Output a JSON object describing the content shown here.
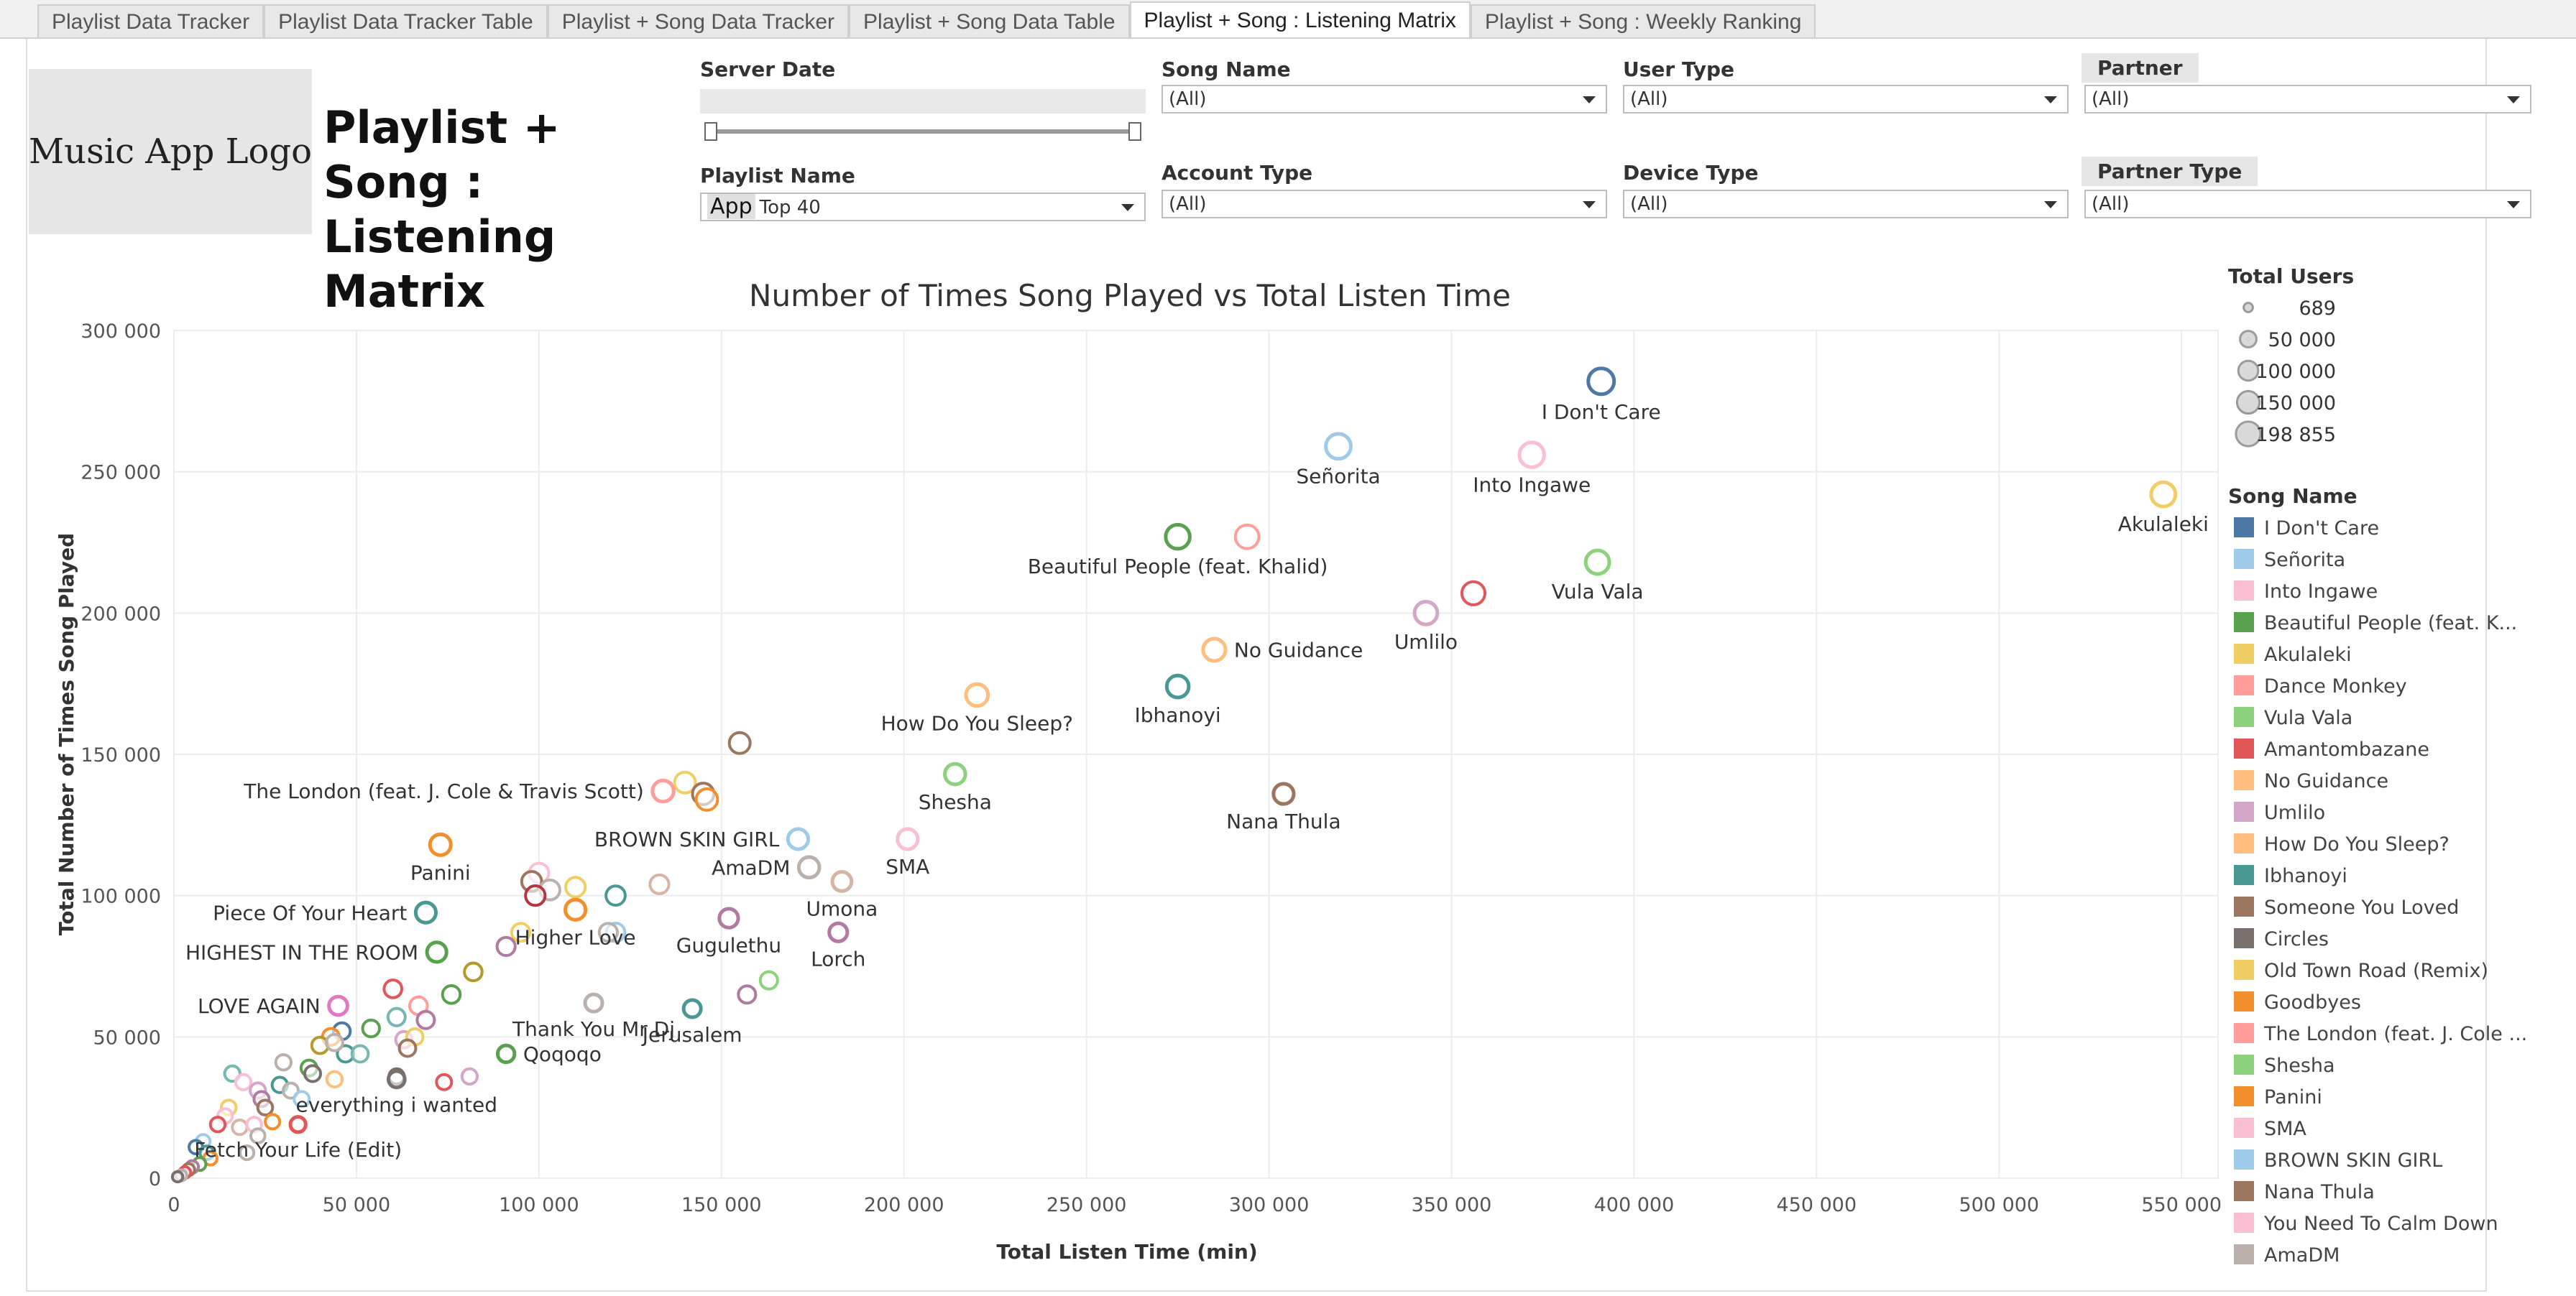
{
  "tabs": [
    {
      "label": "Playlist Data Tracker",
      "active": false
    },
    {
      "label": "Playlist Data Tracker Table",
      "active": false
    },
    {
      "label": "Playlist + Song Data Tracker",
      "active": false
    },
    {
      "label": "Playlist + Song Data Table",
      "active": false
    },
    {
      "label": "Playlist + Song : Listening Matrix",
      "active": true
    },
    {
      "label": "Playlist + Song : Weekly Ranking",
      "active": false
    }
  ],
  "logo_text": "Music App Logo",
  "page_title": "Playlist + Song : Listening Matrix",
  "filters": {
    "server_date": {
      "label": "Server Date"
    },
    "playlist_name": {
      "label": "Playlist Name",
      "tag": "App",
      "value": "Top 40"
    },
    "song_name": {
      "label": "Song Name",
      "value": "(All)"
    },
    "account_type": {
      "label": "Account Type",
      "value": "(All)"
    },
    "user_type": {
      "label": "User Type",
      "value": "(All)"
    },
    "device_type": {
      "label": "Device Type",
      "value": "(All)"
    },
    "partner": {
      "label": "Partner",
      "value": "(All)"
    },
    "partner_type": {
      "label": "Partner Type",
      "value": "(All)"
    }
  },
  "size_legend": {
    "title": "Total Users",
    "entries": [
      {
        "label": "689",
        "value": 689
      },
      {
        "label": "50 000",
        "value": 50000
      },
      {
        "label": "100 000",
        "value": 100000
      },
      {
        "label": "150 000",
        "value": 150000
      },
      {
        "label": "198 855",
        "value": 198855
      }
    ]
  },
  "color_legend": {
    "title": "Song Name",
    "entries": [
      {
        "name": "I Don't Care",
        "color": "#4e79a7"
      },
      {
        "name": "Señorita",
        "color": "#a0cbe8"
      },
      {
        "name": "Into Ingawe",
        "color": "#fabfd2"
      },
      {
        "name": "Beautiful People (feat. K...",
        "color": "#59a14f"
      },
      {
        "name": "Akulaleki",
        "color": "#f1ce63"
      },
      {
        "name": "Dance Monkey",
        "color": "#ff9d9a"
      },
      {
        "name": "Vula Vala",
        "color": "#8cd17d"
      },
      {
        "name": "Amantombazane",
        "color": "#e15759"
      },
      {
        "name": "No Guidance",
        "color": "#ffbe7d"
      },
      {
        "name": "Umlilo",
        "color": "#d4a6c8"
      },
      {
        "name": "How Do You Sleep?",
        "color": "#ffbe7d"
      },
      {
        "name": "Ibhanoyi",
        "color": "#499894"
      },
      {
        "name": "Someone You Loved",
        "color": "#9d7660"
      },
      {
        "name": "Circles",
        "color": "#79706e"
      },
      {
        "name": "Old Town Road (Remix)",
        "color": "#f1ce63"
      },
      {
        "name": "Goodbyes",
        "color": "#f28e2b"
      },
      {
        "name": "The London (feat. J. Cole ...",
        "color": "#ff9d9a"
      },
      {
        "name": "Shesha",
        "color": "#8cd17d"
      },
      {
        "name": "Panini",
        "color": "#f28e2b"
      },
      {
        "name": "SMA",
        "color": "#fabfd2"
      },
      {
        "name": "BROWN SKIN GIRL",
        "color": "#a0cbe8"
      },
      {
        "name": "Nana Thula",
        "color": "#9d7660"
      },
      {
        "name": "You Need To Calm Down",
        "color": "#fabfd2"
      },
      {
        "name": "AmaDM",
        "color": "#bab0ac"
      }
    ]
  },
  "chart_data": {
    "type": "scatter",
    "title": "Number of Times Song Played vs Total Listen Time",
    "xlabel": "Total Listen Time (min)",
    "ylabel": "Total Number of Times Song Played",
    "xlim": [
      0,
      560000
    ],
    "ylim": [
      0,
      300000
    ],
    "xticks": [
      {
        "value": 0,
        "label": "0"
      },
      {
        "value": 50000,
        "label": "50 000"
      },
      {
        "value": 100000,
        "label": "100 000"
      },
      {
        "value": 150000,
        "label": "150 000"
      },
      {
        "value": 200000,
        "label": "200 000"
      },
      {
        "value": 250000,
        "label": "250 000"
      },
      {
        "value": 300000,
        "label": "300 000"
      },
      {
        "value": 350000,
        "label": "350 000"
      },
      {
        "value": 400000,
        "label": "400 000"
      },
      {
        "value": 450000,
        "label": "450 000"
      },
      {
        "value": 500000,
        "label": "500 000"
      },
      {
        "value": 550000,
        "label": "550 000"
      }
    ],
    "yticks": [
      {
        "value": 0,
        "label": "0"
      },
      {
        "value": 50000,
        "label": "50 000"
      },
      {
        "value": 100000,
        "label": "100 000"
      },
      {
        "value": 150000,
        "label": "150 000"
      },
      {
        "value": 200000,
        "label": "200 000"
      },
      {
        "value": 250000,
        "label": "250 000"
      },
      {
        "value": 300000,
        "label": "300 000"
      }
    ],
    "grid": true,
    "labeled_points": [
      {
        "label": "I Don't Care",
        "x": 391000,
        "y": 282000,
        "users": 198855,
        "color": "#4e79a7",
        "label_pos": "below"
      },
      {
        "label": "Señorita",
        "x": 319000,
        "y": 259000,
        "users": 180000,
        "color": "#a0cbe8",
        "label_pos": "below"
      },
      {
        "label": "Into Ingawe",
        "x": 372000,
        "y": 256000,
        "users": 175000,
        "color": "#fabfd2",
        "label_pos": "below"
      },
      {
        "label": "Akulaleki",
        "x": 545000,
        "y": 242000,
        "users": 165000,
        "color": "#f1ce63",
        "label_pos": "below"
      },
      {
        "label": "Beautiful People (feat. Khalid)",
        "x": 275000,
        "y": 227000,
        "users": 160000,
        "color": "#59a14f",
        "label_pos": "below"
      },
      {
        "label": "Vula Vala",
        "x": 390000,
        "y": 218000,
        "users": 150000,
        "color": "#8cd17d",
        "label_pos": "below"
      },
      {
        "label": "Umlilo",
        "x": 343000,
        "y": 200000,
        "users": 135000,
        "color": "#d4a6c8",
        "label_pos": "below"
      },
      {
        "label": "No Guidance",
        "x": 285000,
        "y": 187000,
        "users": 125000,
        "color": "#ffbe7d",
        "label_pos": "right"
      },
      {
        "label": "Ibhanoyi",
        "x": 275000,
        "y": 174000,
        "users": 120000,
        "color": "#499894",
        "label_pos": "below"
      },
      {
        "label": "How Do You Sleep?",
        "x": 220000,
        "y": 171000,
        "users": 120000,
        "color": "#ffbe7d",
        "label_pos": "below"
      },
      {
        "label": "Shesha",
        "x": 214000,
        "y": 143000,
        "users": 95000,
        "color": "#8cd17d",
        "label_pos": "below"
      },
      {
        "label": "Nana Thula",
        "x": 304000,
        "y": 136000,
        "users": 90000,
        "color": "#9d7660",
        "label_pos": "below"
      },
      {
        "label": "The London (feat. J. Cole & Travis Scott)",
        "x": 134000,
        "y": 137000,
        "users": 105000,
        "color": "#ff9d9a",
        "label_pos": "left"
      },
      {
        "label": "BROWN SKIN GIRL",
        "x": 171000,
        "y": 120000,
        "users": 90000,
        "color": "#a0cbe8",
        "label_pos": "left"
      },
      {
        "label": "SMA",
        "x": 201000,
        "y": 120000,
        "users": 90000,
        "color": "#fabfd2",
        "label_pos": "below"
      },
      {
        "label": "Panini",
        "x": 73000,
        "y": 118000,
        "users": 100000,
        "color": "#f28e2b",
        "label_pos": "below"
      },
      {
        "label": "AmaDM",
        "x": 174000,
        "y": 110000,
        "users": 95000,
        "color": "#bab0ac",
        "label_pos": "left"
      },
      {
        "label": "Umona",
        "x": 183000,
        "y": 105000,
        "users": 75000,
        "color": "#d7b5a6",
        "label_pos": "below"
      },
      {
        "label": "Piece Of Your Heart",
        "x": 69000,
        "y": 94000,
        "users": 90000,
        "color": "#499894",
        "label_pos": "left"
      },
      {
        "label": "Gugulethu",
        "x": 152000,
        "y": 92000,
        "users": 70000,
        "color": "#b07aa1",
        "label_pos": "below"
      },
      {
        "label": "Lorch",
        "x": 182000,
        "y": 87000,
        "users": 60000,
        "color": "#b07aa1",
        "label_pos": "below"
      },
      {
        "label": "Higher Love",
        "x": 110000,
        "y": 95000,
        "users": 90000,
        "color": "#f28e2b",
        "label_pos": "below"
      },
      {
        "label": "HIGHEST IN THE ROOM",
        "x": 72000,
        "y": 80000,
        "users": 80000,
        "color": "#59a14f",
        "label_pos": "left"
      },
      {
        "label": "LOVE AGAIN",
        "x": 45000,
        "y": 61000,
        "users": 65000,
        "color": "#e377c2",
        "label_pos": "left"
      },
      {
        "label": "Jerusalem",
        "x": 142000,
        "y": 60000,
        "users": 50000,
        "color": "#499894",
        "label_pos": "below"
      },
      {
        "label": "Thank You Mr Dj",
        "x": 115000,
        "y": 62000,
        "users": 50000,
        "color": "#bab0ac",
        "label_pos": "below"
      },
      {
        "label": "Qoqoqo",
        "x": 91000,
        "y": 44000,
        "users": 45000,
        "color": "#59a14f",
        "label_pos": "right"
      },
      {
        "label": "everything i wanted",
        "x": 61000,
        "y": 35000,
        "users": 40000,
        "color": "#79706e",
        "label_pos": "below"
      },
      {
        "label": "Fetch Your Life (Edit)",
        "x": 34000,
        "y": 19000,
        "users": 30000,
        "color": "#e15759",
        "label_pos": "below"
      }
    ],
    "other_points": [
      {
        "x": 294000,
        "y": 227000,
        "users": 150000,
        "color": "#ff9d9a"
      },
      {
        "x": 356000,
        "y": 207000,
        "users": 140000,
        "color": "#e15759"
      },
      {
        "x": 155000,
        "y": 154000,
        "users": 100000,
        "color": "#9d7660"
      },
      {
        "x": 140000,
        "y": 140000,
        "users": 100000,
        "color": "#f1ce63"
      },
      {
        "x": 145000,
        "y": 136000,
        "users": 110000,
        "color": "#9d7660"
      },
      {
        "x": 146000,
        "y": 134000,
        "users": 110000,
        "color": "#f28e2b"
      },
      {
        "x": 100000,
        "y": 108000,
        "users": 80000,
        "color": "#fabfd2"
      },
      {
        "x": 98000,
        "y": 105000,
        "users": 85000,
        "color": "#9d7660"
      },
      {
        "x": 103000,
        "y": 102000,
        "users": 85000,
        "color": "#bab0ac"
      },
      {
        "x": 110000,
        "y": 103000,
        "users": 80000,
        "color": "#f1ce63"
      },
      {
        "x": 99000,
        "y": 100000,
        "users": 80000,
        "color": "#b6363f"
      },
      {
        "x": 133000,
        "y": 104000,
        "users": 70000,
        "color": "#d7b5a6"
      },
      {
        "x": 121000,
        "y": 100000,
        "users": 75000,
        "color": "#499894"
      },
      {
        "x": 121000,
        "y": 87000,
        "users": 65000,
        "color": "#a0cbe8"
      },
      {
        "x": 95000,
        "y": 87000,
        "users": 60000,
        "color": "#f1ce63"
      },
      {
        "x": 91000,
        "y": 82000,
        "users": 60000,
        "color": "#b07aa1"
      },
      {
        "x": 82000,
        "y": 73000,
        "users": 55000,
        "color": "#b6992d"
      },
      {
        "x": 76000,
        "y": 65000,
        "users": 55000,
        "color": "#59a14f"
      },
      {
        "x": 60000,
        "y": 67000,
        "users": 55000,
        "color": "#e15759"
      },
      {
        "x": 67000,
        "y": 61000,
        "users": 55000,
        "color": "#ff9d9a"
      },
      {
        "x": 69000,
        "y": 56000,
        "users": 50000,
        "color": "#b07aa1"
      },
      {
        "x": 61000,
        "y": 57000,
        "users": 50000,
        "color": "#76b7b2"
      },
      {
        "x": 54000,
        "y": 53000,
        "users": 45000,
        "color": "#59a14f"
      },
      {
        "x": 46000,
        "y": 52000,
        "users": 45000,
        "color": "#4e79a7"
      },
      {
        "x": 43000,
        "y": 50000,
        "users": 45000,
        "color": "#f28e2b"
      },
      {
        "x": 40000,
        "y": 47000,
        "users": 40000,
        "color": "#b6992d"
      },
      {
        "x": 63000,
        "y": 49000,
        "users": 40000,
        "color": "#d4a6c8"
      },
      {
        "x": 66000,
        "y": 50000,
        "users": 40000,
        "color": "#f1ce63"
      },
      {
        "x": 64000,
        "y": 46000,
        "users": 40000,
        "color": "#9d7660"
      },
      {
        "x": 47000,
        "y": 44000,
        "users": 40000,
        "color": "#499894"
      },
      {
        "x": 51000,
        "y": 44000,
        "users": 40000,
        "color": "#76b7b2"
      },
      {
        "x": 44000,
        "y": 48000,
        "users": 40000,
        "color": "#bab0ac"
      },
      {
        "x": 37000,
        "y": 39000,
        "users": 35000,
        "color": "#59a14f"
      },
      {
        "x": 38000,
        "y": 37000,
        "users": 35000,
        "color": "#79706e"
      },
      {
        "x": 30000,
        "y": 41000,
        "users": 30000,
        "color": "#bab0ac"
      },
      {
        "x": 44000,
        "y": 35000,
        "users": 30000,
        "color": "#ffbe7d"
      },
      {
        "x": 61000,
        "y": 36000,
        "users": 30000,
        "color": "#79706e"
      },
      {
        "x": 81000,
        "y": 36000,
        "users": 30000,
        "color": "#d4a6c8"
      },
      {
        "x": 74000,
        "y": 34000,
        "users": 28000,
        "color": "#e15759"
      },
      {
        "x": 119000,
        "y": 87000,
        "users": 60000,
        "color": "#bab0ac"
      },
      {
        "x": 163000,
        "y": 70000,
        "users": 50000,
        "color": "#8cd17d"
      },
      {
        "x": 157000,
        "y": 65000,
        "users": 50000,
        "color": "#b07aa1"
      },
      {
        "x": 16000,
        "y": 37000,
        "users": 30000,
        "color": "#76b7b2"
      },
      {
        "x": 19000,
        "y": 34000,
        "users": 30000,
        "color": "#fabfd2"
      },
      {
        "x": 23000,
        "y": 31000,
        "users": 30000,
        "color": "#d4a6c8"
      },
      {
        "x": 29000,
        "y": 33000,
        "users": 30000,
        "color": "#499894"
      },
      {
        "x": 32000,
        "y": 31000,
        "users": 28000,
        "color": "#bab0ac"
      },
      {
        "x": 35000,
        "y": 28000,
        "users": 28000,
        "color": "#a0cbe8"
      },
      {
        "x": 24000,
        "y": 28000,
        "users": 28000,
        "color": "#b07aa1"
      },
      {
        "x": 25000,
        "y": 25000,
        "users": 26000,
        "color": "#9d7660"
      },
      {
        "x": 15000,
        "y": 25000,
        "users": 26000,
        "color": "#f1ce63"
      },
      {
        "x": 14000,
        "y": 22000,
        "users": 24000,
        "color": "#fabfd2"
      },
      {
        "x": 12000,
        "y": 19000,
        "users": 24000,
        "color": "#e15759"
      },
      {
        "x": 18000,
        "y": 18000,
        "users": 24000,
        "color": "#d7b5a6"
      },
      {
        "x": 22000,
        "y": 19000,
        "users": 24000,
        "color": "#fabfd2"
      },
      {
        "x": 27000,
        "y": 20000,
        "users": 22000,
        "color": "#f28e2b"
      },
      {
        "x": 23000,
        "y": 15000,
        "users": 20000,
        "color": "#bab0ac"
      },
      {
        "x": 20000,
        "y": 9000,
        "users": 18000,
        "color": "#bab0ac"
      },
      {
        "x": 8000,
        "y": 13000,
        "users": 18000,
        "color": "#a0cbe8"
      },
      {
        "x": 6000,
        "y": 11000,
        "users": 16000,
        "color": "#4e79a7"
      },
      {
        "x": 9000,
        "y": 9000,
        "users": 16000,
        "color": "#499894"
      },
      {
        "x": 10000,
        "y": 7000,
        "users": 14000,
        "color": "#f28e2b"
      },
      {
        "x": 7000,
        "y": 5000,
        "users": 12000,
        "color": "#59a14f"
      },
      {
        "x": 5000,
        "y": 4000,
        "users": 10000,
        "color": "#b07aa1"
      },
      {
        "x": 4000,
        "y": 3000,
        "users": 8000,
        "color": "#9d7660"
      },
      {
        "x": 3000,
        "y": 2000,
        "users": 6000,
        "color": "#e15759"
      },
      {
        "x": 2000,
        "y": 1000,
        "users": 4000,
        "color": "#bab0ac"
      },
      {
        "x": 1000,
        "y": 500,
        "users": 2000,
        "color": "#79706e"
      }
    ]
  }
}
